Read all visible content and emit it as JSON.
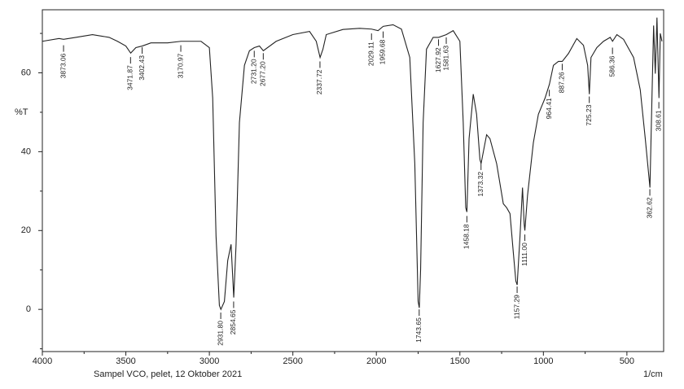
{
  "chart_data": {
    "type": "line",
    "subtitle": "Sampel VCO, pelet, 12 Oktober 2021",
    "x_label": "1/cm",
    "y_label": "%T",
    "color": "#222222",
    "xlim": [
      4000,
      280
    ],
    "ylim": [
      -10.7,
      76
    ],
    "xticks": [
      4000,
      3500,
      3000,
      2500,
      2000,
      1500,
      1000,
      500
    ],
    "xminor": [
      3750,
      3250,
      2750,
      2250,
      1750,
      1250,
      750
    ],
    "yticks": [
      0,
      20,
      40,
      60
    ],
    "yminor": [
      -10,
      10,
      30,
      50,
      70
    ],
    "x": [
      4000,
      3900,
      3873,
      3800,
      3700,
      3600,
      3550,
      3500,
      3471,
      3440,
      3402,
      3350,
      3250,
      3170,
      3050,
      3000,
      2980,
      2960,
      2940,
      2931,
      2910,
      2890,
      2870,
      2854,
      2840,
      2820,
      2790,
      2760,
      2731,
      2700,
      2677,
      2600,
      2500,
      2400,
      2360,
      2337,
      2320,
      2300,
      2200,
      2100,
      2029,
      1990,
      1959,
      1900,
      1850,
      1800,
      1770,
      1750,
      1743,
      1735,
      1720,
      1700,
      1660,
      1627,
      1581,
      1540,
      1500,
      1480,
      1465,
      1458,
      1445,
      1420,
      1400,
      1380,
      1373,
      1340,
      1320,
      1280,
      1240,
      1220,
      1200,
      1180,
      1165,
      1157,
      1140,
      1125,
      1115,
      1111,
      1095,
      1060,
      1030,
      990,
      964,
      940,
      910,
      887,
      850,
      800,
      760,
      735,
      725,
      715,
      680,
      640,
      600,
      586,
      560,
      520,
      460,
      420,
      390,
      362,
      350,
      340,
      330,
      320,
      308,
      300,
      290
    ],
    "values": [
      68.0,
      68.7,
      68.5,
      69.0,
      69.7,
      69.0,
      68.0,
      66.8,
      65.0,
      66.4,
      66.8,
      67.6,
      67.6,
      68.0,
      68.0,
      66.4,
      53.6,
      18.6,
      1.0,
      0.0,
      2.0,
      12.4,
      16.5,
      3.0,
      16.5,
      47.4,
      61.9,
      65.6,
      66.4,
      66.8,
      65.6,
      68.0,
      69.7,
      70.5,
      68.0,
      63.9,
      66.0,
      69.7,
      71.0,
      71.3,
      71.1,
      70.7,
      71.8,
      72.2,
      71.1,
      63.9,
      37.0,
      2.0,
      0.4,
      10.3,
      47.4,
      66.0,
      69.0,
      69.0,
      69.7,
      70.7,
      68.0,
      47.4,
      25.8,
      24.7,
      43.3,
      54.6,
      49.5,
      38.0,
      37.0,
      44.3,
      43.3,
      37.0,
      26.8,
      25.8,
      24.3,
      14.4,
      7.2,
      6.2,
      18.6,
      30.9,
      21.6,
      20.0,
      28.9,
      42.3,
      49.5,
      53.6,
      57.1,
      61.9,
      62.9,
      62.9,
      64.9,
      68.7,
      67.0,
      61.9,
      54.6,
      63.9,
      66.4,
      68.0,
      69.0,
      68.0,
      69.7,
      68.5,
      63.9,
      55.7,
      43.3,
      30.9,
      53.6,
      72.0,
      59.8,
      74.0,
      53.6,
      70.0,
      68.0
    ],
    "peaks": [
      {
        "value": 3873.06,
        "label": "3873.06",
        "y": 67
      },
      {
        "value": 3471.87,
        "label": "3471.87",
        "y": 64
      },
      {
        "value": 3402.43,
        "label": "3402.43",
        "y": 66.5
      },
      {
        "value": 3170.97,
        "label": "3170.97",
        "y": 67
      },
      {
        "value": 2931.8,
        "label": "2931.80",
        "y": -0.8
      },
      {
        "value": 2854.65,
        "label": "2854.65",
        "y": 2
      },
      {
        "value": 2731.2,
        "label": "2731.20",
        "y": 65.6
      },
      {
        "value": 2677.2,
        "label": "2677.20",
        "y": 65
      },
      {
        "value": 2337.72,
        "label": "2337.72",
        "y": 62.9
      },
      {
        "value": 2029.11,
        "label": "2029.11",
        "y": 70
      },
      {
        "value": 1959.68,
        "label": "1959.68",
        "y": 70.5
      },
      {
        "value": 1743.65,
        "label": "1743.65",
        "y": 0
      },
      {
        "value": 1627.92,
        "label": "1627.92",
        "y": 68.5
      },
      {
        "value": 1581.63,
        "label": "1581.63",
        "y": 69
      },
      {
        "value": 1458.18,
        "label": "1458.18",
        "y": 23.7
      },
      {
        "value": 1373.32,
        "label": "1373.32",
        "y": 37
      },
      {
        "value": 1157.29,
        "label": "1157.29",
        "y": 5.8
      },
      {
        "value": 1111.0,
        "label": "1111.00",
        "y": 19
      },
      {
        "value": 964.41,
        "label": "964.41",
        "y": 55.7
      },
      {
        "value": 887.26,
        "label": "887.26",
        "y": 62.3
      },
      {
        "value": 725.23,
        "label": "725.23",
        "y": 54
      },
      {
        "value": 586.36,
        "label": "586.36",
        "y": 66.4
      },
      {
        "value": 362.62,
        "label": "362.62",
        "y": 30.5
      },
      {
        "value": 308.61,
        "label": "308.61",
        "y": 52.6
      }
    ]
  }
}
